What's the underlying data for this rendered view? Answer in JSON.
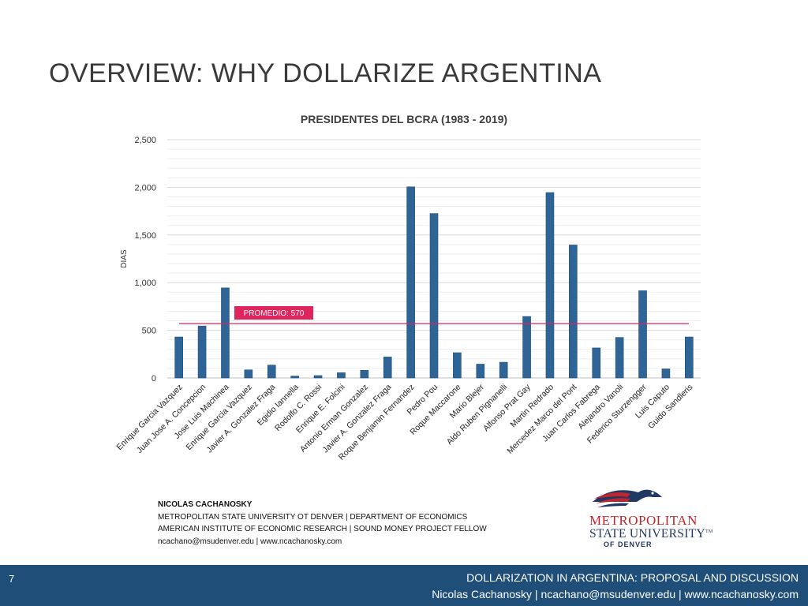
{
  "slide": {
    "title": "OVERVIEW: WHY DOLLARIZE ARGENTINA",
    "page_number": "7"
  },
  "chart_data": {
    "type": "bar",
    "title": "PRESIDENTES DEL BCRA (1983 - 2019)",
    "xlabel": "",
    "ylabel": "DIAS",
    "ylim": [
      0,
      2500
    ],
    "yticks": [
      0,
      500,
      1000,
      1500,
      2000,
      2500
    ],
    "ytick_labels": [
      "0",
      "500",
      "1,000",
      "1,500",
      "2,000",
      "2,500"
    ],
    "grid": true,
    "categories": [
      "Enrique Garcia Vazquez",
      "Juan Jose A. Concepcion",
      "Jose Luis Machinea",
      "Enrique Garcia Vazquez",
      "Javier A. Gonzalez Fraga",
      "Egidio Iannella",
      "Rodolfo C. Rossi",
      "Enrique E. Folcini",
      "Antonio Erman Gonzalez",
      "Javier A. Gonzalez Fraga",
      "Roque Benjamin Fernandez",
      "Pedro Pou",
      "Roque Maccarone",
      "Mario Blejer",
      "Aldo Ruben Pignanelli",
      "Alfonso Prat Gay",
      "Martin Redrado",
      "Mercedez Marco del Pont",
      "Juan Carlos Fabrega",
      "Alejandro Vanoli",
      "Federico Sturzengger",
      "Luis Caputo",
      "Guido Sandleris"
    ],
    "values": [
      430,
      545,
      945,
      85,
      135,
      20,
      25,
      55,
      80,
      220,
      2005,
      1725,
      265,
      145,
      165,
      645,
      1945,
      1395,
      315,
      425,
      915,
      95,
      430
    ],
    "bar_color": "#2e6596",
    "average": {
      "value": 570,
      "label": "PROMEDIO: 570",
      "color": "#e0245e"
    }
  },
  "author": {
    "name": "NICOLAS CACHANOSKY",
    "line1": "METROPOLITAN STATE UNIVERSITY OT DENVER | DEPARTMENT OF ECONOMICS",
    "line2": "AMERICAN INSTITUTE OF ECONOMIC RESEARCH | SOUND MONEY PROJECT FELLOW",
    "contact": "ncachano@msudenver.edu | www.ncachanosky.com"
  },
  "logo": {
    "line1": "METROPOLITAN",
    "line2": "STATE UNIVERSITY",
    "tm": "TM",
    "line3": "OF DENVER"
  },
  "footer": {
    "line1": "DOLLARIZATION IN ARGENTINA: PROPOSAL AND DISCUSSION",
    "line2": "Nicolas Cachanosky | ncachano@msudenver.edu | www.ncachanosky.com"
  }
}
